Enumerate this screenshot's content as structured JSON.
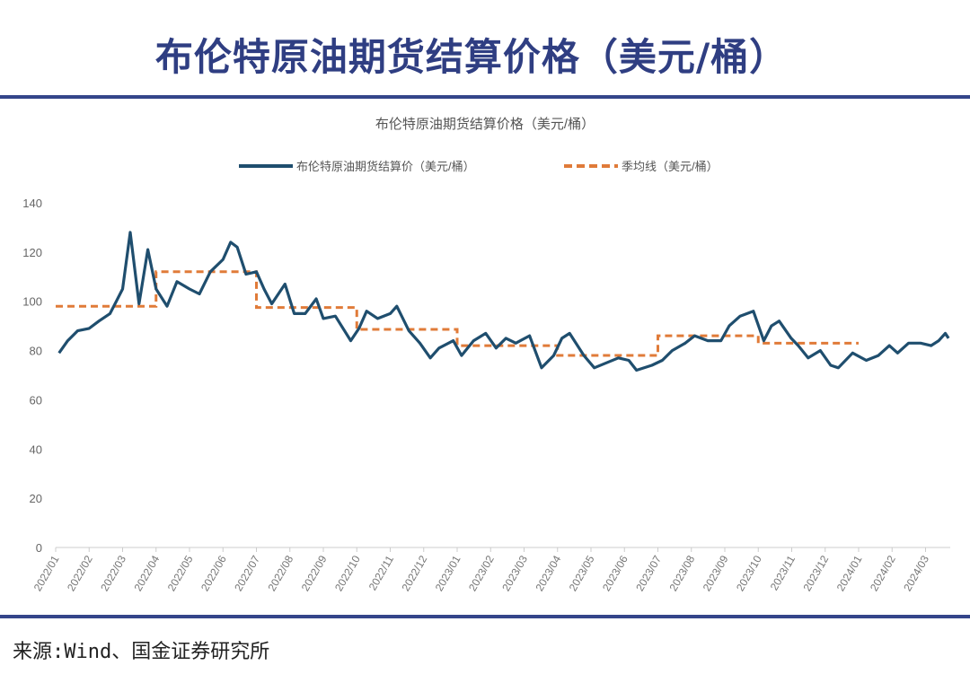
{
  "header": {
    "title": "布伦特原油期货结算价格（美元/桶）"
  },
  "footer": {
    "source": "来源:Wind、国金证券研究所"
  },
  "colors": {
    "accent": "#2f3e82",
    "price_line": "#1f4e6e",
    "avg_line": "#e07b39"
  },
  "chart_data": {
    "type": "line",
    "title": "布伦特原油期货结算价格（美元/桶）",
    "ylim": [
      0,
      140
    ],
    "yticks": [
      0,
      20,
      40,
      60,
      80,
      100,
      120,
      140
    ],
    "grid": false,
    "legend_placement": "top",
    "xticks": [
      "2022/01",
      "2022/02",
      "2022/03",
      "2022/04",
      "2022/05",
      "2022/06",
      "2022/07",
      "2022/08",
      "2022/09",
      "2022/10",
      "2022/11",
      "2022/12",
      "2023/01",
      "2023/02",
      "2023/03",
      "2023/04",
      "2023/05",
      "2023/06",
      "2023/07",
      "2023/08",
      "2023/09",
      "2023/10",
      "2023/11",
      "2023/12",
      "2024/01",
      "2024/02",
      "2024/03"
    ],
    "series": [
      {
        "name": "布伦特原油期货结算价（美元/桶）",
        "style": "solid",
        "x": [
          "2022-01-04",
          "2022-01-12",
          "2022-01-21",
          "2022-02-01",
          "2022-02-10",
          "2022-02-20",
          "2022-03-01",
          "2022-03-08",
          "2022-03-16",
          "2022-03-24",
          "2022-04-01",
          "2022-04-11",
          "2022-04-20",
          "2022-05-01",
          "2022-05-10",
          "2022-05-20",
          "2022-06-01",
          "2022-06-08",
          "2022-06-14",
          "2022-06-22",
          "2022-07-01",
          "2022-07-08",
          "2022-07-15",
          "2022-07-27",
          "2022-08-05",
          "2022-08-15",
          "2022-08-25",
          "2022-09-01",
          "2022-09-12",
          "2022-09-26",
          "2022-10-03",
          "2022-10-10",
          "2022-10-20",
          "2022-11-01",
          "2022-11-07",
          "2022-11-18",
          "2022-11-28",
          "2022-12-07",
          "2022-12-15",
          "2022-12-28",
          "2023-01-05",
          "2023-01-16",
          "2023-01-27",
          "2023-02-06",
          "2023-02-15",
          "2023-02-24",
          "2023-03-06",
          "2023-03-17",
          "2023-03-28",
          "2023-04-05",
          "2023-04-12",
          "2023-04-25",
          "2023-05-04",
          "2023-05-15",
          "2023-05-26",
          "2023-06-05",
          "2023-06-12",
          "2023-06-26",
          "2023-07-05",
          "2023-07-14",
          "2023-07-26",
          "2023-08-04",
          "2023-08-16",
          "2023-08-28",
          "2023-09-05",
          "2023-09-15",
          "2023-09-27",
          "2023-10-06",
          "2023-10-13",
          "2023-10-20",
          "2023-10-31",
          "2023-11-07",
          "2023-11-16",
          "2023-11-27",
          "2023-12-06",
          "2023-12-13",
          "2023-12-26",
          "2024-01-08",
          "2024-01-19",
          "2024-01-29",
          "2024-02-06",
          "2024-02-16",
          "2024-02-27",
          "2024-03-06",
          "2024-03-13",
          "2024-03-19",
          "2024-03-22"
        ],
        "values": [
          79,
          84,
          88,
          89,
          92,
          95,
          105,
          128,
          99,
          121,
          105,
          98,
          108,
          105,
          103,
          112,
          117,
          124,
          122,
          111,
          112,
          105,
          99,
          107,
          95,
          95,
          101,
          93,
          94,
          84,
          89,
          96,
          93,
          95,
          98,
          88,
          83,
          77,
          81,
          84,
          78,
          84,
          87,
          81,
          85,
          83,
          86,
          73,
          78,
          85,
          87,
          78,
          73,
          75,
          77,
          76,
          72,
          74,
          76,
          80,
          83,
          86,
          84,
          84,
          90,
          94,
          96,
          84,
          90,
          92,
          85,
          82,
          77,
          80,
          74,
          73,
          79,
          76,
          78,
          82,
          79,
          83,
          83,
          82,
          84,
          87,
          85
        ]
      },
      {
        "name": "季均线（美元/桶）",
        "style": "dashed",
        "quarters": [
          {
            "start": "2022-01-01",
            "end": "2022-04-01",
            "value": 98
          },
          {
            "start": "2022-04-01",
            "end": "2022-07-01",
            "value": 112
          },
          {
            "start": "2022-07-01",
            "end": "2022-10-01",
            "value": 97.5
          },
          {
            "start": "2022-10-01",
            "end": "2023-01-01",
            "value": 88.6
          },
          {
            "start": "2023-01-01",
            "end": "2023-04-01",
            "value": 82
          },
          {
            "start": "2023-04-01",
            "end": "2023-07-01",
            "value": 78
          },
          {
            "start": "2023-07-01",
            "end": "2023-10-01",
            "value": 86
          },
          {
            "start": "2023-10-01",
            "end": "2024-01-01",
            "value": 83
          }
        ]
      }
    ]
  }
}
